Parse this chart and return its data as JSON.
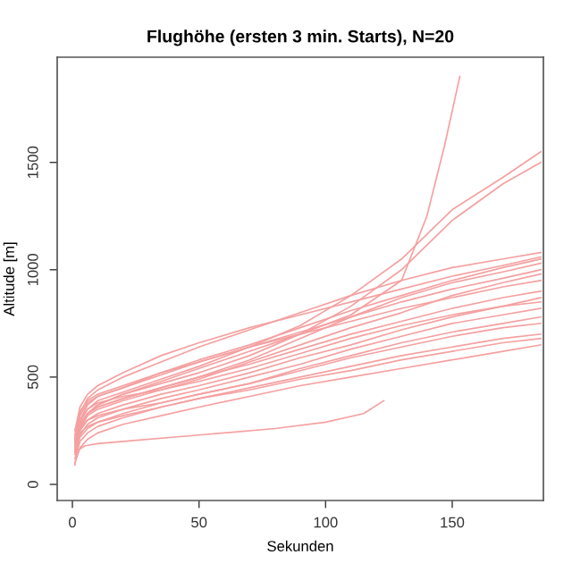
{
  "chart_data": {
    "type": "line",
    "title": "Flughöhe (ersten 3 min. Starts), N=20",
    "xlabel": "Sekunden",
    "ylabel": "Altitude [m]",
    "x": [
      1,
      3,
      6,
      10,
      20,
      35,
      50,
      70,
      90,
      110,
      130,
      150,
      170,
      185
    ],
    "xlim": [
      -6,
      186
    ],
    "ylim": [
      -75,
      1990
    ],
    "xticks": [
      0,
      50,
      100,
      150
    ],
    "yticks": [
      0,
      500,
      1000,
      1500
    ],
    "grid": false,
    "legend": false,
    "line_style": "solid",
    "marker": "none",
    "series": [
      {
        "color": "#f5a0a0",
        "x": [
          1,
          3,
          6,
          10,
          20,
          35,
          50,
          70,
          90,
          110,
          130,
          140,
          147,
          153
        ],
        "values": [
          90,
          250,
          330,
          370,
          420,
          480,
          540,
          620,
          700,
          790,
          950,
          1250,
          1580,
          1900
        ]
      },
      {
        "color": "#f5a0a0",
        "values": [
          200,
          290,
          350,
          390,
          430,
          490,
          550,
          640,
          740,
          880,
          1050,
          1280,
          1430,
          1550
        ]
      },
      {
        "color": "#f5a0a0",
        "values": [
          180,
          270,
          330,
          370,
          420,
          470,
          520,
          600,
          700,
          830,
          1000,
          1230,
          1400,
          1500
        ]
      },
      {
        "color": "#f5a0a0",
        "x": [
          1,
          5,
          10,
          20,
          50,
          80,
          100,
          115,
          123
        ],
        "values": [
          150,
          180,
          190,
          200,
          230,
          260,
          290,
          330,
          390
        ]
      },
      {
        "color": "#f5a0a0",
        "values": [
          220,
          330,
          400,
          440,
          500,
          570,
          640,
          720,
          800,
          880,
          950,
          1010,
          1050,
          1080
        ]
      },
      {
        "color": "#f5a0a0",
        "values": [
          250,
          360,
          420,
          460,
          520,
          600,
          660,
          730,
          790,
          850,
          910,
          970,
          1020,
          1060
        ]
      },
      {
        "color": "#f5a0a0",
        "values": [
          180,
          300,
          370,
          410,
          450,
          520,
          580,
          650,
          730,
          810,
          880,
          950,
          1010,
          1050
        ]
      },
      {
        "color": "#f5a0a0",
        "values": [
          200,
          280,
          330,
          360,
          400,
          450,
          500,
          580,
          680,
          780,
          870,
          940,
          990,
          1030
        ]
      },
      {
        "color": "#f5a0a0",
        "values": [
          210,
          320,
          380,
          410,
          450,
          510,
          570,
          640,
          710,
          780,
          850,
          910,
          960,
          1000
        ]
      },
      {
        "color": "#f5a0a0",
        "values": [
          170,
          260,
          320,
          350,
          390,
          440,
          490,
          570,
          650,
          730,
          800,
          880,
          940,
          980
        ]
      },
      {
        "color": "#f5a0a0",
        "values": [
          230,
          340,
          390,
          420,
          460,
          520,
          570,
          640,
          700,
          760,
          820,
          870,
          920,
          950
        ]
      },
      {
        "color": "#f5a0a0",
        "values": [
          190,
          280,
          330,
          360,
          400,
          450,
          500,
          560,
          630,
          700,
          760,
          820,
          870,
          900
        ]
      },
      {
        "color": "#f5a0a0",
        "values": [
          160,
          250,
          300,
          330,
          370,
          420,
          460,
          520,
          590,
          650,
          720,
          780,
          830,
          870
        ]
      },
      {
        "color": "#f5a0a0",
        "values": [
          200,
          300,
          350,
          380,
          410,
          440,
          480,
          540,
          610,
          680,
          740,
          790,
          830,
          850
        ]
      },
      {
        "color": "#f5a0a0",
        "values": [
          150,
          230,
          280,
          310,
          350,
          400,
          440,
          500,
          560,
          630,
          690,
          750,
          790,
          820
        ]
      },
      {
        "color": "#f5a0a0",
        "values": [
          180,
          260,
          300,
          320,
          350,
          380,
          420,
          470,
          540,
          600,
          660,
          710,
          750,
          780
        ]
      },
      {
        "color": "#f5a0a0",
        "values": [
          140,
          220,
          260,
          290,
          330,
          380,
          420,
          470,
          530,
          590,
          640,
          690,
          730,
          750
        ]
      },
      {
        "color": "#f5a0a0",
        "values": [
          120,
          200,
          240,
          270,
          310,
          360,
          400,
          450,
          500,
          550,
          600,
          640,
          680,
          700
        ]
      },
      {
        "color": "#f5a0a0",
        "values": [
          160,
          240,
          270,
          290,
          320,
          360,
          400,
          440,
          490,
          530,
          580,
          620,
          660,
          680
        ]
      },
      {
        "color": "#f5a0a0",
        "values": [
          100,
          170,
          210,
          240,
          280,
          320,
          360,
          410,
          460,
          500,
          540,
          580,
          620,
          650
        ]
      }
    ]
  }
}
